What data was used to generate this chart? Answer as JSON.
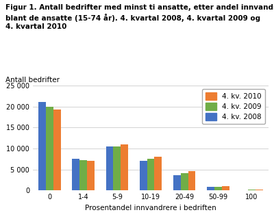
{
  "title_line1": "Figur 1. Antall bedrifter med minst ti ansatte, etter andel innvandrere",
  "title_line2": "blant de ansatte (15-74 år). 4. kvartal 2008, 4. kvartal 2009 og",
  "title_line3": "4. kvartal 2010",
  "ylabel": "Antall bedrifter",
  "xlabel": "Prosentandel innvandrere i bedriften",
  "categories": [
    "0",
    "1-4",
    "5-9",
    "10-19",
    "20-49",
    "50-99",
    "100"
  ],
  "series": {
    "4. kv. 2008": [
      21000,
      7500,
      10500,
      7000,
      3700,
      800,
      100
    ],
    "4. kv. 2009": [
      20000,
      7200,
      10500,
      7500,
      4100,
      900,
      150
    ],
    "4. kv. 2010": [
      19300,
      7000,
      11000,
      8000,
      4700,
      1050,
      200
    ]
  },
  "colors": {
    "4. kv. 2008": "#4472c4",
    "4. kv. 2009": "#70ad47",
    "4. kv. 2010": "#ed7d31"
  },
  "legend_order": [
    "4. kv. 2010",
    "4. kv. 2009",
    "4. kv. 2008"
  ],
  "plot_order": [
    "4. kv. 2008",
    "4. kv. 2009",
    "4. kv. 2010"
  ],
  "ylim": [
    0,
    25000
  ],
  "yticks": [
    0,
    5000,
    10000,
    15000,
    20000,
    25000
  ],
  "ytick_labels": [
    "0",
    "5 000",
    "10 000",
    "15 000",
    "20 000",
    "25 000"
  ],
  "background_color": "#ffffff",
  "grid_color": "#cccccc",
  "title_fontsize": 7.5,
  "ylabel_fontsize": 7.5,
  "xlabel_fontsize": 7.5,
  "tick_fontsize": 7,
  "legend_fontsize": 7.5,
  "bar_width": 0.22
}
